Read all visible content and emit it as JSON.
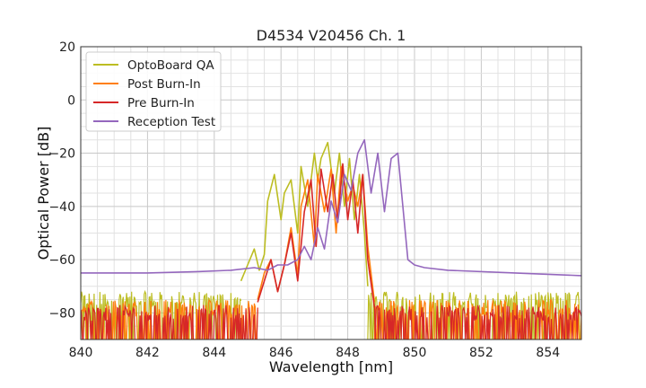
{
  "chart_data": {
    "type": "line",
    "title": "D4534 V20456 Ch. 1",
    "xlabel": "Wavelength [nm]",
    "ylabel": "Optical Power [dB]",
    "xlim": [
      840,
      855
    ],
    "ylim": [
      -90,
      20
    ],
    "xticks": [
      840,
      842,
      844,
      846,
      848,
      850,
      852,
      854
    ],
    "yticks": [
      20,
      0,
      -20,
      -40,
      -60,
      -80
    ],
    "xtick_labels": [
      "840",
      "842",
      "844",
      "846",
      "848",
      "850",
      "852",
      "854"
    ],
    "ytick_labels": [
      "20",
      "0",
      "−20",
      "−40",
      "−60",
      "−80"
    ],
    "grid": true,
    "legend_position": "top-left",
    "series": [
      {
        "name": "OptoBoard QA",
        "color": "#bcbd22",
        "noise_floor": -75,
        "noise_range": [
          840,
          844.8
        ],
        "noise_range2": [
          848.6,
          855
        ],
        "x": [
          844.8,
          845.0,
          845.2,
          845.35,
          845.5,
          845.6,
          845.8,
          846.0,
          846.1,
          846.3,
          846.5,
          846.6,
          846.8,
          847.0,
          847.1,
          847.2,
          847.4,
          847.6,
          847.75,
          847.9,
          848.05,
          848.2,
          848.35,
          848.5,
          848.6
        ],
        "y": [
          -68,
          -62,
          -56,
          -64,
          -58,
          -38,
          -28,
          -45,
          -35,
          -30,
          -50,
          -25,
          -40,
          -20,
          -30,
          -22,
          -16,
          -35,
          -20,
          -40,
          -22,
          -45,
          -28,
          -50,
          -70
        ]
      },
      {
        "name": "Post Burn-In",
        "color": "#ff7f0e",
        "noise_floor": -78,
        "noise_range": [
          840,
          845.3
        ],
        "noise_range2": [
          848.8,
          855
        ],
        "x": [
          845.3,
          845.5,
          845.7,
          845.9,
          846.1,
          846.3,
          846.5,
          846.6,
          846.8,
          847.0,
          847.1,
          847.3,
          847.5,
          847.65,
          847.8,
          848.0,
          848.15,
          848.3,
          848.45,
          848.6,
          848.8
        ],
        "y": [
          -75,
          -65,
          -60,
          -72,
          -62,
          -48,
          -66,
          -40,
          -30,
          -55,
          -28,
          -42,
          -26,
          -50,
          -25,
          -38,
          -32,
          -40,
          -28,
          -55,
          -76
        ]
      },
      {
        "name": "Pre Burn-In",
        "color": "#d62728",
        "noise_floor": -80,
        "noise_range": [
          840,
          845.3
        ],
        "noise_range2": [
          848.8,
          855
        ],
        "x": [
          845.3,
          845.5,
          845.7,
          845.9,
          846.1,
          846.3,
          846.5,
          846.7,
          846.9,
          847.05,
          847.2,
          847.4,
          847.55,
          847.7,
          847.85,
          848.0,
          848.15,
          848.3,
          848.45,
          848.6,
          848.8
        ],
        "y": [
          -76,
          -68,
          -60,
          -72,
          -62,
          -50,
          -68,
          -42,
          -30,
          -55,
          -26,
          -42,
          -28,
          -46,
          -24,
          -45,
          -30,
          -50,
          -28,
          -60,
          -78
        ]
      },
      {
        "name": "Reception Test",
        "color": "#9467bd",
        "x": [
          840.0,
          842.0,
          843.5,
          844.5,
          845.2,
          845.6,
          845.9,
          846.2,
          846.5,
          846.7,
          846.9,
          847.1,
          847.3,
          847.5,
          847.7,
          847.9,
          848.1,
          848.3,
          848.5,
          848.7,
          848.9,
          849.1,
          849.3,
          849.5,
          849.8,
          850.0,
          850.3,
          851.0,
          853.0,
          855.0
        ],
        "y": [
          -65,
          -65,
          -64.5,
          -64,
          -63,
          -64,
          -62,
          -62,
          -60,
          -55,
          -60,
          -48,
          -56,
          -38,
          -46,
          -28,
          -34,
          -20,
          -15,
          -35,
          -20,
          -42,
          -22,
          -20,
          -60,
          -62,
          -63,
          -64,
          -65,
          -66
        ]
      }
    ]
  }
}
